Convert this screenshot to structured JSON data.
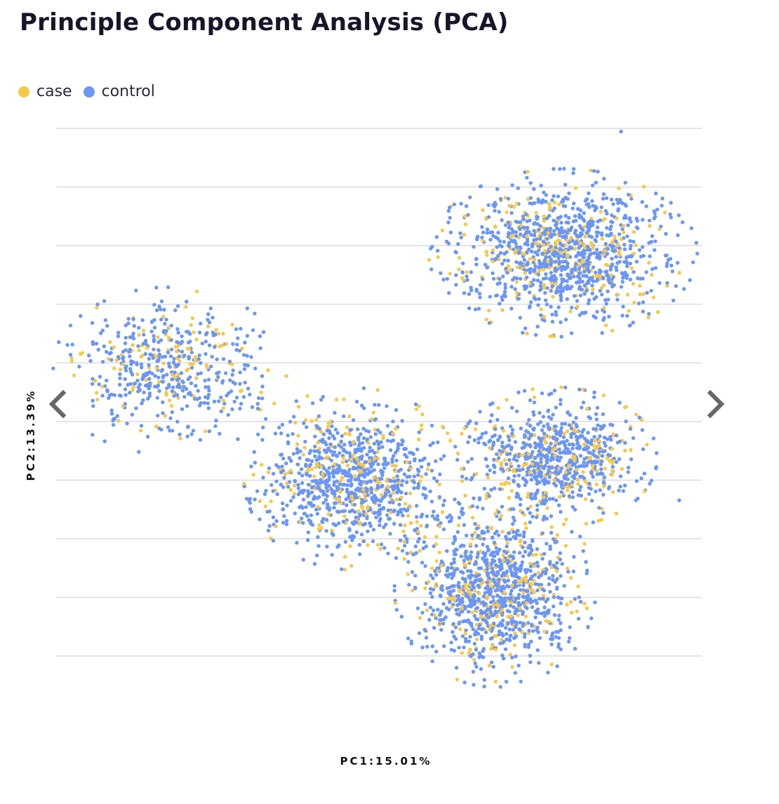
{
  "title": "Principle Component Analysis (PCA)",
  "legend": [
    {
      "label": "case",
      "color": "#f7c948"
    },
    {
      "label": "control",
      "color": "#6b96f7"
    }
  ],
  "navigation": {
    "prev_icon": "chevron-left-icon",
    "next_icon": "chevron-right-icon",
    "color": "#666666"
  },
  "chart_data": {
    "type": "scatter",
    "title": "Principle Component Analysis (PCA)",
    "xlabel": "PC1:15.01%",
    "ylabel": "PC2:13.39%",
    "grid": "horizontal",
    "legend_position": "top-left",
    "series": [
      {
        "name": "case",
        "color": "#f7c948"
      },
      {
        "name": "control",
        "color": "#6b96f7"
      }
    ],
    "clusters": [
      {
        "center": [
          -0.65,
          0.28
        ],
        "spread": [
          0.14,
          0.12
        ],
        "n_case": 120,
        "n_control": 420
      },
      {
        "center": [
          -0.08,
          -0.12
        ],
        "spread": [
          0.13,
          0.13
        ],
        "n_case": 220,
        "n_control": 780
      },
      {
        "center": [
          0.57,
          0.72
        ],
        "spread": [
          0.16,
          0.12
        ],
        "n_case": 250,
        "n_control": 900
      },
      {
        "center": [
          0.55,
          -0.04
        ],
        "spread": [
          0.12,
          0.1
        ],
        "n_case": 180,
        "n_control": 600
      },
      {
        "center": [
          0.36,
          -0.53
        ],
        "spread": [
          0.12,
          0.14
        ],
        "n_case": 230,
        "n_control": 850
      }
    ],
    "outliers": [
      {
        "series": "control",
        "x": 0.75,
        "y": 1.17
      },
      {
        "series": "control",
        "x": 0.2,
        "y": 0.62
      },
      {
        "series": "control",
        "x": 0.93,
        "y": -0.2
      },
      {
        "series": "case",
        "x": -0.25,
        "y": 0.04
      }
    ],
    "xlim": [
      -1.0,
      1.0
    ],
    "ylim": [
      -1.0,
      1.2
    ]
  }
}
